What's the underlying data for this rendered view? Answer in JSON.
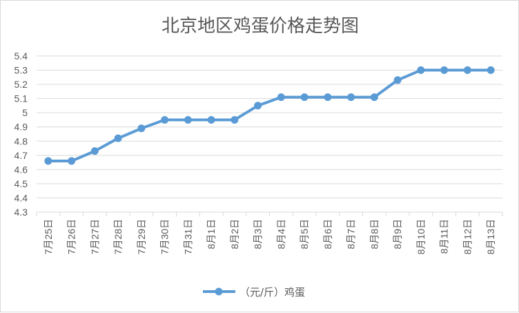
{
  "chart_data": {
    "type": "line",
    "title": "北京地区鸡蛋价格走势图",
    "categories": [
      "7月25日",
      "7月26日",
      "7月27日",
      "7月28日",
      "7月29日",
      "7月30日",
      "7月31日",
      "8月1日",
      "8月2日",
      "8月3日",
      "8月4日",
      "8月5日",
      "8月6日",
      "8月7日",
      "8月8日",
      "8月9日",
      "8月10日",
      "8月11日",
      "8月12日",
      "8月13日"
    ],
    "series": [
      {
        "name": "（元/斤）鸡蛋",
        "color": "#5b9bd5",
        "values": [
          4.66,
          4.66,
          4.73,
          4.82,
          4.89,
          4.95,
          4.95,
          4.95,
          4.95,
          5.05,
          5.11,
          5.11,
          5.11,
          5.11,
          5.11,
          5.23,
          5.3,
          5.3,
          5.3,
          5.3
        ]
      }
    ],
    "ylim": [
      4.3,
      5.4
    ],
    "yticks": [
      "4.3",
      "4.4",
      "4.5",
      "4.6",
      "4.7",
      "4.8",
      "4.9",
      "5",
      "5.1",
      "5.2",
      "5.3",
      "5.4"
    ],
    "xlabel": "",
    "ylabel": "",
    "grid": true,
    "legend": "bottom"
  }
}
